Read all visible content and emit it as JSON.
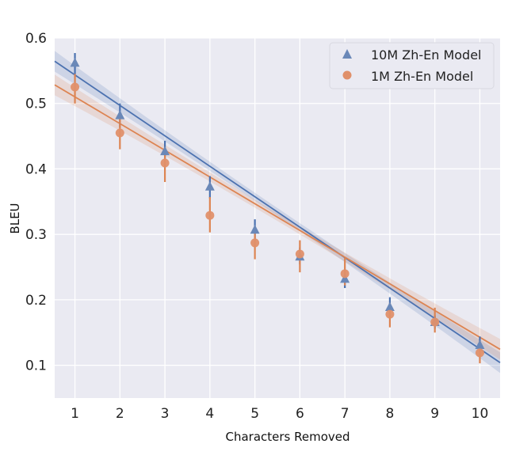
{
  "chart_data": {
    "type": "scatter",
    "xlabel": "Characters Removed",
    "ylabel": "BLEU",
    "x": [
      1,
      2,
      3,
      4,
      5,
      6,
      7,
      8,
      9,
      10
    ],
    "xlim": [
      0.55,
      10.45
    ],
    "ylim": [
      0.05,
      0.6
    ],
    "xticks": [
      1,
      2,
      3,
      4,
      5,
      6,
      7,
      8,
      9,
      10
    ],
    "yticks": [
      0.1,
      0.2,
      0.3,
      0.4,
      0.5,
      0.6
    ],
    "ytick_labels": [
      "0.1",
      "0.2",
      "0.3",
      "0.4",
      "0.5",
      "0.6"
    ],
    "grid": true,
    "legend_position": "top-right",
    "series": [
      {
        "name": "10M Zh-En Model",
        "marker": "triangle",
        "color": "#4c72b0",
        "y": [
          0.562,
          0.482,
          0.427,
          0.373,
          0.307,
          0.266,
          0.232,
          0.189,
          0.166,
          0.131
        ],
        "err_low": [
          0.545,
          0.463,
          0.41,
          0.355,
          0.29,
          0.254,
          0.218,
          0.178,
          0.156,
          0.12
        ],
        "err_high": [
          0.577,
          0.5,
          0.443,
          0.389,
          0.323,
          0.28,
          0.247,
          0.204,
          0.176,
          0.144
        ],
        "fit": [
          0.5435,
          0.0465
        ]
      },
      {
        "name": "1M Zh-En Model",
        "marker": "circle",
        "color": "#dd8452",
        "y": [
          0.525,
          0.455,
          0.409,
          0.329,
          0.287,
          0.27,
          0.24,
          0.178,
          0.166,
          0.119
        ],
        "err_low": [
          0.5,
          0.43,
          0.38,
          0.303,
          0.262,
          0.242,
          0.222,
          0.158,
          0.15,
          0.103
        ],
        "err_high": [
          0.545,
          0.476,
          0.43,
          0.357,
          0.31,
          0.291,
          0.264,
          0.195,
          0.188,
          0.137
        ],
        "fit": [
          0.51,
          0.0408
        ]
      }
    ]
  }
}
